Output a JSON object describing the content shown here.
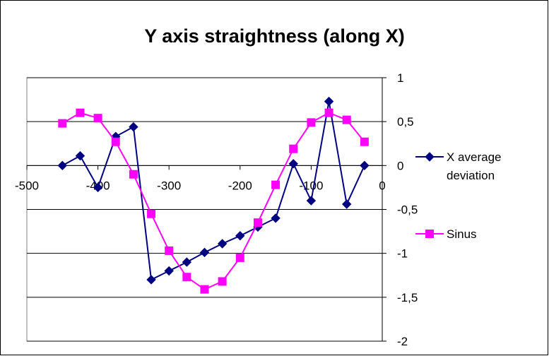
{
  "chart_data": {
    "type": "line",
    "title": "Y axis straightness (along X)",
    "xlabel": "",
    "ylabel": "",
    "xlim": [
      -500,
      0
    ],
    "ylim": [
      -2,
      1
    ],
    "x_ticks": [
      "-500",
      "-400",
      "-300",
      "-200",
      "-100",
      "0"
    ],
    "x_tick_values": [
      -500,
      -400,
      -300,
      -200,
      -100,
      0
    ],
    "y_ticks": [
      "1",
      "0,5",
      "0",
      "-0,5",
      "-1",
      "-1,5",
      "-2"
    ],
    "y_tick_values": [
      1,
      0.5,
      0,
      -0.5,
      -1,
      -1.5,
      -2
    ],
    "grid": "horizontal",
    "legend_position": "right",
    "series": [
      {
        "name": "X average deviation",
        "color": "#000080",
        "marker": "diamond",
        "x": [
          -450,
          -425,
          -400,
          -375,
          -350,
          -325,
          -300,
          -275,
          -250,
          -225,
          -200,
          -175,
          -150,
          -125,
          -100,
          -75,
          -50,
          -25
        ],
        "y": [
          0.0,
          0.11,
          -0.25,
          0.33,
          0.44,
          -1.3,
          -1.2,
          -1.1,
          -0.99,
          -0.89,
          -0.8,
          -0.7,
          -0.6,
          0.02,
          -0.4,
          0.73,
          -0.44,
          0.0
        ]
      },
      {
        "name": "Sinus",
        "color": "#FF00FF",
        "marker": "square",
        "x": [
          -450,
          -425,
          -400,
          -375,
          -350,
          -325,
          -300,
          -275,
          -250,
          -225,
          -200,
          -175,
          -150,
          -125,
          -100,
          -75,
          -50,
          -25
        ],
        "y": [
          0.48,
          0.6,
          0.54,
          0.27,
          -0.1,
          -0.55,
          -0.97,
          -1.27,
          -1.41,
          -1.32,
          -1.05,
          -0.65,
          -0.22,
          0.19,
          0.49,
          0.6,
          0.52,
          0.27
        ]
      }
    ]
  }
}
